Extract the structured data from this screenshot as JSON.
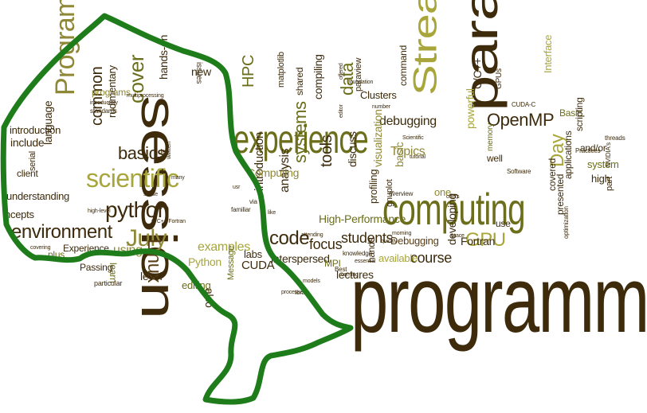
{
  "palette": {
    "dark": "#3d2b0c",
    "olive": "#6b6e1a",
    "gold": "#a8a63a",
    "brown": "#5a3e16",
    "khaki": "#8f8836",
    "outline": "#1e7d1a"
  },
  "words": [
    {
      "id": "programming-big",
      "text": "programming"
    },
    {
      "id": "parallel",
      "text": "parallel"
    },
    {
      "id": "session",
      "text": "session"
    },
    {
      "id": "computing",
      "text": "computing"
    },
    {
      "id": "experience",
      "text": "experience"
    },
    {
      "id": "stream",
      "text": "Stream"
    },
    {
      "id": "programming-mid",
      "text": "Programming"
    },
    {
      "id": "scientific",
      "text": "scientific"
    },
    {
      "id": "python",
      "text": "python"
    },
    {
      "id": "environment",
      "text": "environment"
    },
    {
      "id": "basics",
      "text": "basics"
    },
    {
      "id": "cover",
      "text": "cover"
    },
    {
      "id": "openmp",
      "text": "OpenMP"
    },
    {
      "id": "gpu",
      "text": "GPU"
    },
    {
      "id": "code",
      "text": "code"
    },
    {
      "id": "july",
      "text": "July"
    },
    {
      "id": "linux",
      "text": "Linux"
    },
    {
      "id": "data",
      "text": "data"
    },
    {
      "id": "hpc",
      "text": "HPC"
    },
    {
      "id": "common",
      "text": "common"
    },
    {
      "id": "systems",
      "text": "systems"
    },
    {
      "id": "tools",
      "text": "tools"
    },
    {
      "id": "debugging",
      "text": "debugging"
    },
    {
      "id": "topics",
      "text": "Topics"
    },
    {
      "id": "course",
      "text": "course"
    },
    {
      "id": "students",
      "text": "students"
    },
    {
      "id": "focus",
      "text": "focus"
    },
    {
      "id": "analysis",
      "text": "analysis"
    },
    {
      "id": "introduction-mid",
      "text": "introduction"
    },
    {
      "id": "examples",
      "text": "examples"
    },
    {
      "id": "python-cap",
      "text": "Python"
    },
    {
      "id": "using",
      "text": "using"
    },
    {
      "id": "learn",
      "text": "learn"
    },
    {
      "id": "also",
      "text": "also"
    },
    {
      "id": "level",
      "text": "level"
    },
    {
      "id": "day",
      "text": "Day"
    },
    {
      "id": "developing",
      "text": "developing"
    },
    {
      "id": "fortran",
      "text": "Fortran"
    },
    {
      "id": "lectures",
      "text": "lectures"
    },
    {
      "id": "available",
      "text": "available"
    },
    {
      "id": "debugging-cap",
      "text": "Debugging"
    },
    {
      "id": "high-performance",
      "text": "High-Performance"
    },
    {
      "id": "interspersed",
      "text": "interspersed"
    },
    {
      "id": "cuda",
      "text": "CUDA"
    },
    {
      "id": "message",
      "text": "Message"
    },
    {
      "id": "computing-cap",
      "text": "Computing"
    },
    {
      "id": "visualization",
      "text": "visualization"
    },
    {
      "id": "discuss",
      "text": "discuss"
    },
    {
      "id": "profiling",
      "text": "profiling"
    },
    {
      "id": "paraview",
      "text": "paraview"
    },
    {
      "id": "clusters",
      "text": "Clusters"
    },
    {
      "id": "command",
      "text": "command"
    },
    {
      "id": "compiling",
      "text": "compiling"
    },
    {
      "id": "shared",
      "text": "shared"
    },
    {
      "id": "matplotlib",
      "text": "matplotlib"
    },
    {
      "id": "c-cpp",
      "text": "C/C++"
    },
    {
      "id": "memory",
      "text": "memory"
    },
    {
      "id": "powerful",
      "text": "powerful"
    },
    {
      "id": "gpus",
      "text": "GPUs"
    },
    {
      "id": "interface",
      "text": "Interface"
    },
    {
      "id": "basic-cap",
      "text": "Basic"
    },
    {
      "id": "andor",
      "text": "and/or"
    },
    {
      "id": "scripting",
      "text": "scripting"
    },
    {
      "id": "system",
      "text": "system"
    },
    {
      "id": "high",
      "text": "high"
    },
    {
      "id": "applications",
      "text": "applications"
    },
    {
      "id": "covered",
      "text": "covered"
    },
    {
      "id": "presented",
      "text": "presented"
    },
    {
      "id": "use",
      "text": "use"
    },
    {
      "id": "well",
      "text": "well"
    },
    {
      "id": "one",
      "text": "one"
    },
    {
      "id": "basic",
      "text": "basic"
    },
    {
      "id": "mpi",
      "text": "MPI"
    },
    {
      "id": "hands",
      "text": "hands"
    },
    {
      "id": "labs",
      "text": "labs"
    },
    {
      "id": "editing",
      "text": "editing"
    },
    {
      "id": "hands-on",
      "text": "hands-on"
    },
    {
      "id": "new",
      "text": "new"
    },
    {
      "id": "issues",
      "text": "issues"
    },
    {
      "id": "rudimentary",
      "text": "rudimentary"
    },
    {
      "id": "programs",
      "text": "programs"
    },
    {
      "id": "language",
      "text": "language"
    },
    {
      "id": "include",
      "text": "include"
    },
    {
      "id": "introduction",
      "text": "introduction"
    },
    {
      "id": "understanding",
      "text": "understanding"
    },
    {
      "id": "client",
      "text": "client"
    },
    {
      "id": "serial",
      "text": "serial"
    },
    {
      "id": "experience-cap",
      "text": "Experience"
    },
    {
      "id": "passing",
      "text": "Passing"
    },
    {
      "id": "plus",
      "text": "plus"
    },
    {
      "id": "concepts",
      "text": "ncepts"
    },
    {
      "id": "particular",
      "text": "particular"
    },
    {
      "id": "multiprocessing",
      "text": "multiprocessing"
    },
    {
      "id": "introductory",
      "text": "introductory"
    },
    {
      "id": "standards",
      "text": "standards"
    },
    {
      "id": "gnuplot",
      "text": "gnuplot"
    },
    {
      "id": "overview",
      "text": "overview"
    },
    {
      "id": "morning",
      "text": "morning"
    },
    {
      "id": "optimization",
      "text": "optimization"
    },
    {
      "id": "nvidia",
      "text": "NVIDIA's"
    },
    {
      "id": "threads",
      "text": "threads"
    },
    {
      "id": "practices",
      "text": "Practices"
    },
    {
      "id": "software",
      "text": "Software"
    },
    {
      "id": "part",
      "text": "part"
    },
    {
      "id": "best",
      "text": "Best"
    },
    {
      "id": "knowledge",
      "text": "knowledge"
    },
    {
      "id": "coming",
      "text": "coming"
    },
    {
      "id": "models",
      "text": "models"
    },
    {
      "id": "quickly",
      "text": "quickly"
    },
    {
      "id": "offers",
      "text": "offers"
    },
    {
      "id": "essential",
      "text": "essential"
    },
    {
      "id": "foundation",
      "text": "foundation"
    },
    {
      "id": "number",
      "text": "number"
    },
    {
      "id": "scientific-small",
      "text": "Scientific"
    },
    {
      "id": "cuda-c",
      "text": "CUDA-C"
    },
    {
      "id": "sense",
      "text": "sense"
    },
    {
      "id": "written",
      "text": "written"
    },
    {
      "id": "familiar",
      "text": "familiar"
    },
    {
      "id": "covering",
      "text": "covering"
    },
    {
      "id": "high-level",
      "text": "high-level"
    },
    {
      "id": "offered",
      "text": "offered"
    },
    {
      "id": "editor",
      "text": "editor"
    },
    {
      "id": "tutorial",
      "text": "tutorial"
    },
    {
      "id": "processes",
      "text": "processes"
    },
    {
      "id": "grace",
      "text": "grace"
    },
    {
      "id": "library",
      "text": "library"
    },
    {
      "id": "attending",
      "text": "attending"
    },
    {
      "id": "like",
      "text": "like"
    },
    {
      "id": "cpp-fortran",
      "text": "C/C++/Fortran"
    },
    {
      "id": "dep",
      "text": "dep."
    },
    {
      "id": "via",
      "text": "via"
    },
    {
      "id": "many",
      "text": "many"
    },
    {
      "id": "usr",
      "text": "usr"
    }
  ]
}
